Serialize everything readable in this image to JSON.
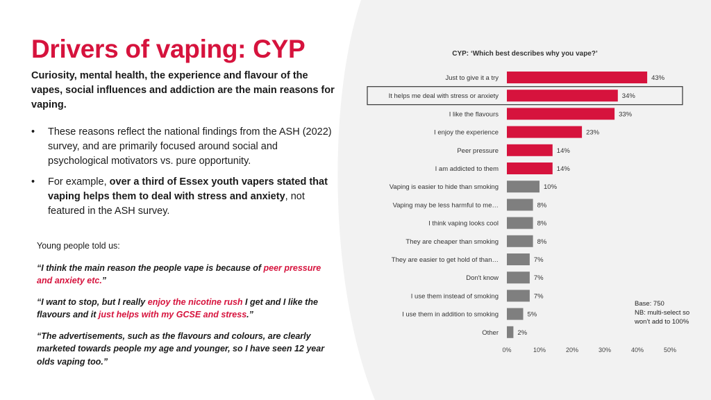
{
  "slide": {
    "title": "Drivers of vaping: CYP",
    "subtitle": "Curiosity, mental health, the experience and flavour of the vapes, social influences and addiction are the main reasons for vaping.",
    "bullets": [
      {
        "segments": [
          {
            "text": "These reasons reflect the national findings from the ASH (2022) survey, and are primarily focused around social and psychological motivators vs. pure opportunity.",
            "bold": false
          }
        ]
      },
      {
        "segments": [
          {
            "text": "For example, ",
            "bold": false
          },
          {
            "text": "over a third of Essex youth vapers stated that vaping helps them to deal with stress and anxiety",
            "bold": true
          },
          {
            "text": ", not featured in the ASH survey.",
            "bold": false
          }
        ]
      }
    ],
    "quotes_intro": "Young people told us:",
    "quotes": [
      [
        {
          "text": "“I think the main reason the people vape is because of ",
          "hl": false
        },
        {
          "text": "peer pressure and anxiety etc.",
          "hl": true
        },
        {
          "text": "”",
          "hl": false
        }
      ],
      [
        {
          "text": "“I want to stop, but I really ",
          "hl": false
        },
        {
          "text": "enjoy the nicotine rush",
          "hl": true
        },
        {
          "text": " I get and I like the flavours and it ",
          "hl": false
        },
        {
          "text": "just helps with my GCSE and stress",
          "hl": true
        },
        {
          "text": ".”",
          "hl": false
        }
      ],
      [
        {
          "text": "“The advertisements, such as the flavours and colours, are clearly marketed towards people my age and younger, so I have seen 12 year olds vaping too.”",
          "hl": false
        }
      ]
    ],
    "base_note": "Base: 750",
    "nb_note": "NB: multi-select so won’t add to 100%"
  },
  "colors": {
    "accent": "#d6133d",
    "grey_bar": "#7f7f7f",
    "panel_bg": "#f2f2f2"
  },
  "chart_data": {
    "type": "bar",
    "orientation": "horizontal",
    "title": "CYP: ‘Which best describes why you vape?’",
    "categories": [
      "Just to give it a try",
      "It helps me deal with stress or anxiety",
      "I like the flavours",
      "I enjoy the experience",
      "Peer pressure",
      "I am addicted to them",
      "Vaping is easier to hide than smoking",
      "Vaping may be less harmful to me…",
      "I think vaping looks cool",
      "They are cheaper than smoking",
      "They are easier to get hold of than…",
      "Don't know",
      "I use them instead of smoking",
      "I use them in addition to smoking",
      "Other"
    ],
    "values": [
      43,
      34,
      33,
      23,
      14,
      14,
      10,
      8,
      8,
      8,
      7,
      7,
      7,
      5,
      2
    ],
    "value_labels": [
      "43%",
      "34%",
      "33%",
      "23%",
      "14%",
      "14%",
      "10%",
      "8%",
      "8%",
      "8%",
      "7%",
      "7%",
      "7%",
      "5%",
      "2%"
    ],
    "highlighted_count": 6,
    "boxed_category_index": 1,
    "xlim": [
      0,
      50
    ],
    "xticks": [
      "0%",
      "10%",
      "20%",
      "30%",
      "40%",
      "50%"
    ],
    "tick_values": [
      0,
      10,
      20,
      30,
      40,
      50
    ],
    "grid": false,
    "legend": "none"
  }
}
